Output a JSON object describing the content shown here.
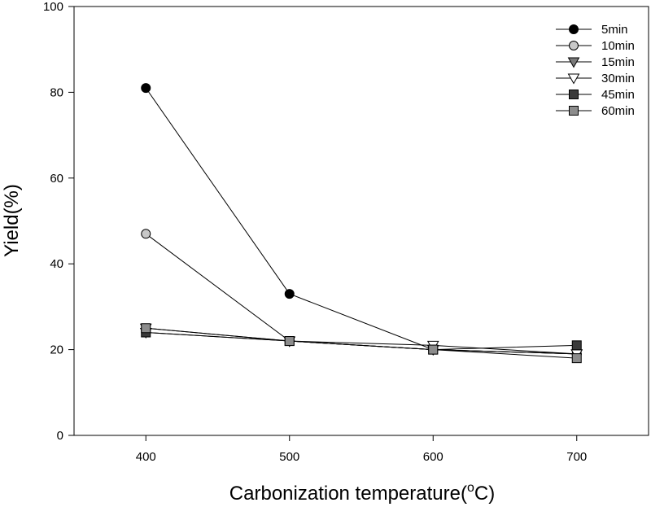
{
  "chart_data": {
    "type": "line",
    "x": [
      400,
      500,
      600,
      700
    ],
    "xlabel": "Carbonization temperature",
    "xlabel_unit_sup": "o",
    "xlabel_unit_after": "C)",
    "xlabel_unit_open": "(",
    "ylabel": "Yield(%)",
    "xlim": [
      350,
      750
    ],
    "ylim": [
      0,
      100
    ],
    "xticks": [
      400,
      500,
      600,
      700
    ],
    "yticks": [
      0,
      20,
      40,
      60,
      80,
      100
    ],
    "grid": false,
    "legend_position": "top-right",
    "series": [
      {
        "name": "5min",
        "marker": "circle",
        "fill": "#000000",
        "values": [
          81,
          33,
          20,
          19
        ]
      },
      {
        "name": "10min",
        "marker": "circle",
        "fill": "#c8c8c8",
        "values": [
          47,
          22,
          20,
          19
        ]
      },
      {
        "name": "15min",
        "marker": "triangle-down",
        "fill": "#7a7a7a",
        "values": [
          24,
          22,
          20,
          19
        ]
      },
      {
        "name": "30min",
        "marker": "triangle-down",
        "fill": "#ffffff",
        "values": [
          25,
          22,
          21,
          19
        ]
      },
      {
        "name": "45min",
        "marker": "square",
        "fill": "#3a3a3a",
        "values": [
          24,
          22,
          20,
          21
        ]
      },
      {
        "name": "60min",
        "marker": "square",
        "fill": "#8c8c8c",
        "values": [
          25,
          22,
          20,
          18
        ]
      }
    ]
  }
}
